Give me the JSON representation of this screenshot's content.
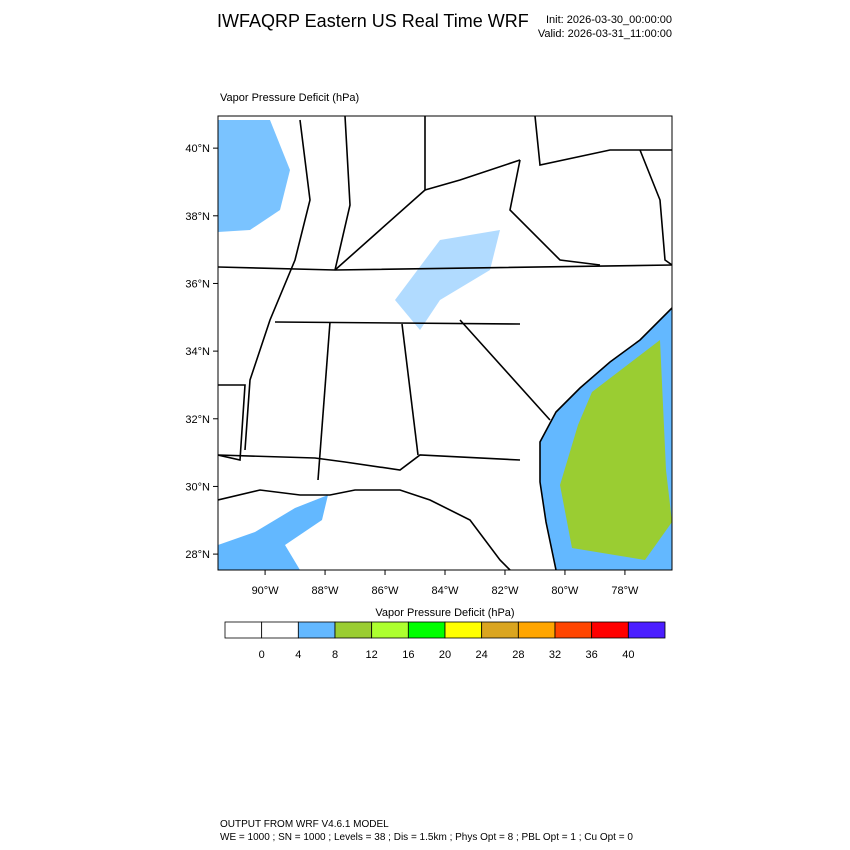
{
  "header": {
    "title": "IWFAQRP Eastern US Real Time WRF",
    "init": "Init: 2026-03-30_00:00:00",
    "valid": "Valid: 2026-03-31_11:00:00"
  },
  "map": {
    "title": "Vapor Pressure Deficit   (hPa)",
    "latlim": [
      27.53,
      40.95
    ],
    "lonlim": [
      -91.57,
      -76.43
    ],
    "lat_ticks": [
      {
        "value": 40,
        "label": "40°N"
      },
      {
        "value": 38,
        "label": "38°N"
      },
      {
        "value": 36,
        "label": "36°N"
      },
      {
        "value": 34,
        "label": "34°N"
      },
      {
        "value": 32,
        "label": "32°N"
      },
      {
        "value": 30,
        "label": "30°N"
      },
      {
        "value": 28,
        "label": "28°N"
      }
    ],
    "lon_ticks": [
      {
        "value": -90,
        "label": "90°W"
      },
      {
        "value": -88,
        "label": "88°W"
      },
      {
        "value": -86,
        "label": "86°W"
      },
      {
        "value": -84,
        "label": "84°W"
      },
      {
        "value": -82,
        "label": "82°W"
      },
      {
        "value": -80,
        "label": "80°W"
      },
      {
        "value": -78,
        "label": "78°W"
      }
    ]
  },
  "colorbar": {
    "title": "Vapor Pressure Deficit  (hPa)",
    "colors": [
      "#ffffff",
      "#ffffff",
      "#63b8ff",
      "#9acd32",
      "#adff2f",
      "#00ff00",
      "#ffff00",
      "#daa520",
      "#ffa500",
      "#ff4500",
      "#ff0000",
      "#4b1eff"
    ],
    "levels": [
      0,
      4,
      8,
      12,
      16,
      20,
      24,
      28,
      32,
      36,
      40
    ]
  },
  "footer": {
    "line1": "OUTPUT FROM WRF V4.6.1 MODEL",
    "line2": "WE = 1000 ; SN = 1000 ; Levels = 38 ; Dis = 1.5km ; Phys Opt = 8 ; PBL Opt = 1 ; Cu Opt = 0"
  }
}
